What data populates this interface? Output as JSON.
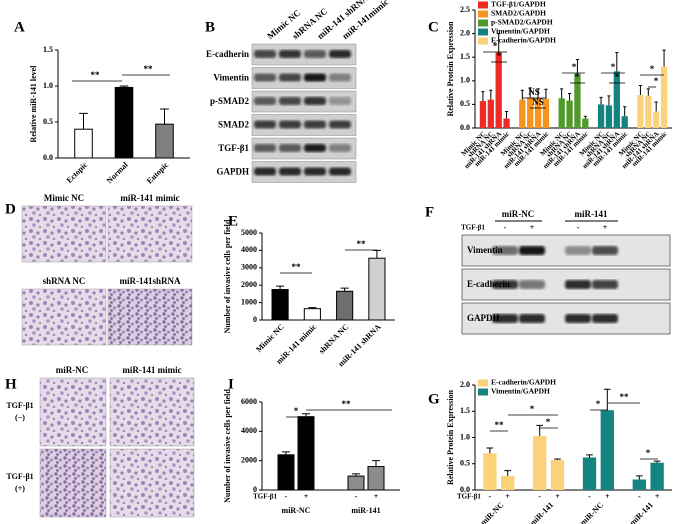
{
  "panel_labels": [
    "A",
    "B",
    "C",
    "D",
    "E",
    "F",
    "G",
    "H",
    "I"
  ],
  "blot_B": {
    "lanes": [
      "Mimic NC",
      "shRNA NC",
      "miR-141 shRNA",
      "miR-141mimic"
    ],
    "proteins": [
      "E-cadherin",
      "Vimentin",
      "p-SMAD2",
      "SMAD2",
      "TGF-β1",
      "GAPDH"
    ]
  },
  "micrograph_D": {
    "labels": [
      "Mimic NC",
      "miR-141 mimic",
      "shRNA NC",
      "miR-141shRNA"
    ]
  },
  "blot_F": {
    "groups": [
      "miR-NC",
      "miR-141"
    ],
    "treatment": "TGF-β1",
    "signs": [
      "-",
      "+",
      "-",
      "+"
    ],
    "proteins": [
      "Vimentin",
      "E-cadherin",
      "GAPDH"
    ]
  },
  "micrograph_H": {
    "columns": [
      "miR-NC",
      "miR-141 mimic"
    ],
    "rows": [
      {
        "label": "TGF-β1",
        "sign": "(−)"
      },
      {
        "label": "TGF-β1",
        "sign": "(+)"
      }
    ]
  },
  "chart_data": [
    {
      "type": "bar",
      "ylabel": "Relative miR-141 level",
      "categories": [
        "Ectopic",
        "Normal",
        "Eutopic"
      ],
      "values": [
        0.4,
        0.98,
        0.47
      ],
      "errors": [
        0.22,
        0.02,
        0.21
      ],
      "colors": [
        "#ffffff",
        "#000000",
        "#808080"
      ],
      "ylim": [
        0,
        1.5
      ],
      "yticks": [
        {
          "value": 0,
          "label": "0.0"
        },
        0.5,
        {
          "value": 1,
          "label": "1.0"
        },
        1.5
      ],
      "annotations": [
        "**",
        "**"
      ]
    },
    {
      "type": "grouped-bar",
      "ylabel": "Relative Protein Expression",
      "categories": [
        "Mimic NC",
        "shRNA NC",
        "miR-141 shRNA",
        "miR-141 mimic"
      ],
      "series": [
        {
          "name": "TGF-β1/GAPDH",
          "color": "#ee2a24",
          "values": [
            0.57,
            0.6,
            1.6,
            0.2
          ],
          "errors": [
            0.2,
            0.2,
            0.4,
            0.15
          ]
        },
        {
          "name": "SMAD2/GAPDH",
          "color": "#f7941d",
          "values": [
            0.6,
            0.65,
            0.63,
            0.62
          ],
          "errors": [
            0.2,
            0.2,
            0.2,
            0.2
          ]
        },
        {
          "name": "p-SMAD2/GAPDH",
          "color": "#4f9a2a",
          "values": [
            0.63,
            0.58,
            1.15,
            0.2
          ],
          "errors": [
            0.2,
            0.15,
            0.3,
            0.05
          ]
        },
        {
          "name": "Vimentin/GAPDH",
          "color": "#138480",
          "values": [
            0.5,
            0.48,
            1.2,
            0.25
          ],
          "errors": [
            0.15,
            0.2,
            0.4,
            0.2
          ]
        },
        {
          "name": "E-cadherin/GAPDH",
          "color": "#fbd27a",
          "values": [
            0.7,
            0.68,
            0.35,
            1.3
          ],
          "errors": [
            0.2,
            0.15,
            0.2,
            0.35
          ]
        }
      ],
      "ylim": [
        0,
        2.5
      ],
      "yticks": [
        {
          "value": 0,
          "label": "0.0"
        },
        0.5,
        {
          "value": 1,
          "label": "1.0"
        },
        1.5,
        {
          "value": 2,
          "label": "2.0"
        },
        2.5
      ],
      "annotations": [
        "*",
        "*",
        "NS",
        "NS",
        "*",
        "*",
        "*",
        "*",
        "*",
        "*"
      ]
    },
    {
      "type": "bar",
      "ylabel": "Number of invasive cells per field",
      "categories": [
        "Mimic NC",
        "miR-141 mimic",
        "shRNA NC",
        "miR-141 shRNA"
      ],
      "values": [
        1750,
        650,
        1650,
        3550
      ],
      "errors": [
        200,
        60,
        180,
        450
      ],
      "colors": [
        "#000000",
        "#ffffff",
        "#6e6e6e",
        "#d0d0d0"
      ],
      "ylim": [
        0,
        5000
      ],
      "yticks": [
        0,
        1000,
        2000,
        3000,
        4000,
        5000
      ],
      "annotations": [
        "**",
        "**"
      ]
    },
    {
      "type": "treatment-bar",
      "ylabel": "Number of invasive cells per field",
      "groups": [
        "miR-NC",
        "miR-141"
      ],
      "treatment": "TGF-β1",
      "signs": [
        "-",
        "+"
      ],
      "values": [
        2400,
        5000,
        950,
        1600
      ],
      "errors": [
        200,
        200,
        150,
        400
      ],
      "colors": [
        "#000000",
        "#000000",
        "#8c8c8c",
        "#8c8c8c"
      ],
      "ylim": [
        0,
        6000
      ],
      "yticks": [
        0,
        2000,
        4000,
        6000
      ],
      "annotations": [
        "*",
        "**"
      ]
    },
    {
      "type": "treatment-bar",
      "ylabel": "Relative Protein Expression",
      "groups": [
        "miR-NC",
        "miR-141"
      ],
      "treatment": "TGF-β1",
      "signs": [
        "-",
        "+"
      ],
      "series": [
        {
          "name": "E-cadherin/GAPDH",
          "color": "#fbd27a",
          "values": [
            0.7,
            0.27,
            1.03,
            0.57
          ],
          "errors": [
            0.1,
            0.1,
            0.2,
            0.02
          ]
        },
        {
          "name": "Vimentin/GAPDH",
          "color": "#138480",
          "values": [
            0.62,
            1.52,
            0.2,
            0.52
          ],
          "errors": [
            0.05,
            0.4,
            0.07,
            0.03
          ]
        }
      ],
      "ylim": [
        0,
        2
      ],
      "yticks": [
        {
          "value": 0,
          "label": "0.0"
        },
        0.5,
        {
          "value": 1,
          "label": "1.0"
        },
        1.5,
        {
          "value": 2,
          "label": "2.0"
        }
      ],
      "annotations": [
        "**",
        "*",
        "*",
        "*",
        "**",
        "*"
      ]
    }
  ]
}
